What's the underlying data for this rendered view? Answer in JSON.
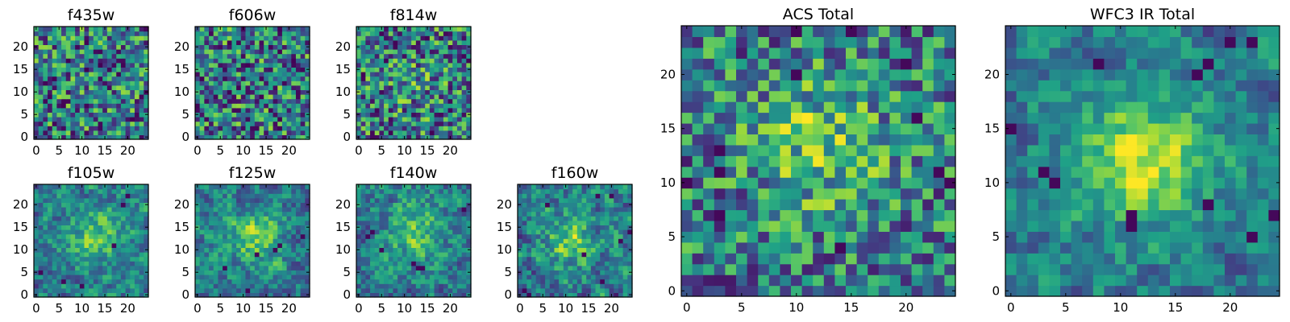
{
  "figure": {
    "colormap": "viridis",
    "colormap_stops": [
      "#440154",
      "#46337f",
      "#365c8d",
      "#277f8e",
      "#1fa187",
      "#4ac16d",
      "#a0da39",
      "#fde725"
    ]
  },
  "chart_data": [
    {
      "type": "heatmap",
      "title": "f435w",
      "grid_size": 25,
      "xticks": [
        0,
        5,
        10,
        15,
        20
      ],
      "yticks": [
        0,
        5,
        10,
        15,
        20
      ],
      "xlim": [
        -0.5,
        24.5
      ],
      "ylim": [
        -0.5,
        24.5
      ],
      "pattern": "noise",
      "seed": 11,
      "peak": [
        12,
        12
      ],
      "peak_strength": 0.0,
      "peak_width": 4.0,
      "noise_level": 1.0,
      "dark_pixels": [
        [
          24,
          10
        ],
        [
          22,
          5
        ],
        [
          2,
          8
        ],
        [
          14,
          2
        ],
        [
          9,
          20
        ]
      ]
    },
    {
      "type": "heatmap",
      "title": "f606w",
      "grid_size": 25,
      "xticks": [
        0,
        5,
        10,
        15,
        20
      ],
      "yticks": [
        0,
        5,
        10,
        15,
        20
      ],
      "xlim": [
        -0.5,
        24.5
      ],
      "ylim": [
        -0.5,
        24.5
      ],
      "pattern": "noise",
      "seed": 23,
      "peak": [
        12,
        12
      ],
      "peak_strength": 0.0,
      "peak_width": 4.0,
      "noise_level": 1.0,
      "dark_pixels": [
        [
          19,
          12
        ],
        [
          12,
          2
        ],
        [
          16,
          6
        ],
        [
          3,
          23
        ],
        [
          21,
          16
        ]
      ]
    },
    {
      "type": "heatmap",
      "title": "f814w",
      "grid_size": 25,
      "xticks": [
        0,
        5,
        10,
        15,
        20
      ],
      "yticks": [
        0,
        5,
        10,
        15,
        20
      ],
      "xlim": [
        -0.5,
        24.5
      ],
      "ylim": [
        -0.5,
        24.5
      ],
      "pattern": "noise",
      "seed": 37,
      "peak": [
        12,
        12
      ],
      "peak_strength": 0.1,
      "peak_width": 4.0,
      "noise_level": 1.0,
      "dark_pixels": [
        [
          19,
          23
        ],
        [
          3,
          1
        ],
        [
          20,
          8
        ],
        [
          1,
          13
        ]
      ]
    },
    {
      "type": "heatmap",
      "title": "f105w",
      "grid_size": 25,
      "xticks": [
        0,
        5,
        10,
        15,
        20
      ],
      "yticks": [
        0,
        5,
        10,
        15,
        20
      ],
      "xlim": [
        -0.5,
        24.5
      ],
      "ylim": [
        -0.5,
        24.5
      ],
      "pattern": "smooth",
      "seed": 41,
      "peak": [
        13,
        13
      ],
      "peak_strength": 0.35,
      "peak_width": 4.0,
      "noise_level": 0.9,
      "dark_pixels": [
        [
          20,
          22
        ],
        [
          19,
          20
        ],
        [
          17,
          11
        ],
        [
          6,
          3
        ],
        [
          1,
          5
        ],
        [
          10,
          2
        ]
      ]
    },
    {
      "type": "heatmap",
      "title": "f125w",
      "grid_size": 25,
      "xticks": [
        0,
        5,
        10,
        15,
        20
      ],
      "yticks": [
        0,
        5,
        10,
        15,
        20
      ],
      "xlim": [
        -0.5,
        24.5
      ],
      "ylim": [
        -0.5,
        24.5
      ],
      "pattern": "smooth",
      "seed": 53,
      "peak": [
        13,
        13
      ],
      "peak_strength": 0.35,
      "peak_width": 4.0,
      "noise_level": 0.9,
      "dark_pixels": [
        [
          18,
          11
        ],
        [
          17,
          10
        ],
        [
          13,
          9
        ],
        [
          6,
          6
        ],
        [
          11,
          1
        ],
        [
          23,
          13
        ]
      ]
    },
    {
      "type": "heatmap",
      "title": "f140w",
      "grid_size": 25,
      "xticks": [
        0,
        5,
        10,
        15,
        20
      ],
      "yticks": [
        0,
        5,
        10,
        15,
        20
      ],
      "xlim": [
        -0.5,
        24.5
      ],
      "ylim": [
        -0.5,
        24.5
      ],
      "pattern": "smooth",
      "seed": 67,
      "peak": [
        12,
        14
      ],
      "peak_strength": 0.3,
      "peak_width": 4.5,
      "noise_level": 0.9,
      "dark_pixels": [
        [
          3,
          14
        ],
        [
          2,
          13
        ],
        [
          12,
          7
        ],
        [
          13,
          6
        ],
        [
          14,
          6
        ],
        [
          5,
          10
        ],
        [
          23,
          19
        ]
      ]
    },
    {
      "type": "heatmap",
      "title": "f160w",
      "grid_size": 25,
      "xticks": [
        0,
        5,
        10,
        15,
        20
      ],
      "yticks": [
        0,
        5,
        10,
        15,
        20
      ],
      "xlim": [
        -0.5,
        24.5
      ],
      "ylim": [
        -0.5,
        24.5
      ],
      "pattern": "smooth",
      "seed": 79,
      "peak": [
        11,
        12
      ],
      "peak_strength": 0.35,
      "peak_width": 4.0,
      "noise_level": 1.0,
      "dark_pixels": [
        [
          2,
          0
        ],
        [
          1,
          1
        ],
        [
          17,
          22
        ],
        [
          20,
          22
        ],
        [
          22,
          12
        ],
        [
          24,
          14
        ],
        [
          14,
          9
        ],
        [
          6,
          20
        ],
        [
          18,
          3
        ]
      ]
    },
    {
      "type": "heatmap",
      "title": "ACS Total",
      "grid_size": 25,
      "xticks": [
        0,
        5,
        10,
        15,
        20
      ],
      "yticks": [
        0,
        5,
        10,
        15,
        20
      ],
      "xlim": [
        -0.5,
        24.5
      ],
      "ylim": [
        -0.5,
        24.5
      ],
      "pattern": "noise",
      "seed": 97,
      "peak": [
        12,
        14
      ],
      "peak_strength": 0.3,
      "peak_width": 4.5,
      "noise_level": 0.85,
      "dark_pixels": [
        [
          10,
          24
        ],
        [
          15,
          24
        ],
        [
          20,
          21
        ],
        [
          10,
          20
        ],
        [
          21,
          16
        ],
        [
          3,
          13
        ],
        [
          0,
          10
        ],
        [
          23,
          11
        ],
        [
          24,
          10
        ],
        [
          3,
          7
        ],
        [
          14,
          4
        ],
        [
          3,
          11
        ]
      ]
    },
    {
      "type": "heatmap",
      "title": "WFC3 IR Total",
      "grid_size": 25,
      "xticks": [
        0,
        5,
        10,
        15,
        20
      ],
      "yticks": [
        0,
        5,
        10,
        15,
        20
      ],
      "xlim": [
        -0.5,
        24.5
      ],
      "ylim": [
        -0.5,
        24.5
      ],
      "pattern": "smooth",
      "seed": 113,
      "peak": [
        12,
        12
      ],
      "peak_strength": 0.5,
      "peak_width": 4.0,
      "noise_level": 0.8,
      "dark_pixels": [
        [
          22,
          23
        ],
        [
          20,
          23
        ],
        [
          8,
          21
        ],
        [
          18,
          21
        ],
        [
          17,
          20
        ],
        [
          0,
          15
        ],
        [
          3,
          11
        ],
        [
          4,
          10
        ],
        [
          24,
          7
        ],
        [
          22,
          5
        ],
        [
          11,
          7
        ],
        [
          11,
          6
        ],
        [
          18,
          8
        ]
      ]
    }
  ]
}
